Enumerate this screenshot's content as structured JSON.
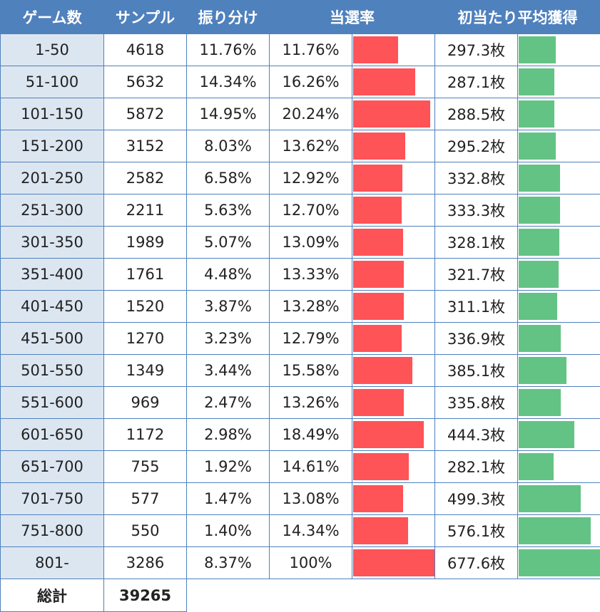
{
  "table": {
    "header": [
      "ゲーム数",
      "サンプル",
      "振り分け",
      "当選率",
      "初当たり平均獲得"
    ],
    "rows": [
      [
        "1-50",
        4618,
        "11.76%",
        {
          "value": 11.76,
          "label": "11.76%"
        },
        {
          "value": 297.3,
          "label": "297.3枚"
        }
      ],
      [
        "51-100",
        5632,
        "14.34%",
        {
          "value": 16.26,
          "label": "16.26%"
        },
        {
          "value": 287.1,
          "label": "287.1枚"
        }
      ],
      [
        "101-150",
        5872,
        "14.95%",
        {
          "value": 20.24,
          "label": "20.24%"
        },
        {
          "value": 288.5,
          "label": "288.5枚"
        }
      ],
      [
        "151-200",
        3152,
        "8.03%",
        {
          "value": 13.62,
          "label": "13.62%"
        },
        {
          "value": 295.2,
          "label": "295.2枚"
        }
      ],
      [
        "201-250",
        2582,
        "6.58%",
        {
          "value": 12.92,
          "label": "12.92%"
        },
        {
          "value": 332.8,
          "label": "332.8枚"
        }
      ],
      [
        "251-300",
        2211,
        "5.63%",
        {
          "value": 12.7,
          "label": "12.70%"
        },
        {
          "value": 333.3,
          "label": "333.3枚"
        }
      ],
      [
        "301-350",
        1989,
        "5.07%",
        {
          "value": 13.09,
          "label": "13.09%"
        },
        {
          "value": 328.1,
          "label": "328.1枚"
        }
      ],
      [
        "351-400",
        1761,
        "4.48%",
        {
          "value": 13.33,
          "label": "13.33%"
        },
        {
          "value": 321.7,
          "label": "321.7枚"
        }
      ],
      [
        "401-450",
        1520,
        "3.87%",
        {
          "value": 13.28,
          "label": "13.28%"
        },
        {
          "value": 311.1,
          "label": "311.1枚"
        }
      ],
      [
        "451-500",
        1270,
        "3.23%",
        {
          "value": 12.79,
          "label": "12.79%"
        },
        {
          "value": 336.9,
          "label": "336.9枚"
        }
      ],
      [
        "501-550",
        1349,
        "3.44%",
        {
          "value": 15.58,
          "label": "15.58%"
        },
        {
          "value": 385.1,
          "label": "385.1枚"
        }
      ],
      [
        "551-600",
        969,
        "2.47%",
        {
          "value": 13.26,
          "label": "13.26%"
        },
        {
          "value": 335.8,
          "label": "335.8枚"
        }
      ],
      [
        "601-650",
        1172,
        "2.98%",
        {
          "value": 18.49,
          "label": "18.49%"
        },
        {
          "value": 444.3,
          "label": "444.3枚"
        }
      ],
      [
        "651-700",
        755,
        "1.92%",
        {
          "value": 14.61,
          "label": "14.61%"
        },
        {
          "value": 282.1,
          "label": "282.1枚"
        }
      ],
      [
        "701-750",
        577,
        "1.47%",
        {
          "value": 13.08,
          "label": "13.08%"
        },
        {
          "value": 499.3,
          "label": "499.3枚"
        }
      ],
      [
        "751-800",
        550,
        "1.40%",
        {
          "value": 14.34,
          "label": "14.34%"
        },
        {
          "value": 576.1,
          "label": "576.1枚"
        }
      ],
      [
        "801-",
        3286,
        "8.37%",
        {
          "value": 100,
          "label": "100%"
        },
        {
          "value": 677.6,
          "label": "677.6枚"
        }
      ]
    ],
    "total": {
      "label": "総計",
      "value": 39265
    }
  }
}
